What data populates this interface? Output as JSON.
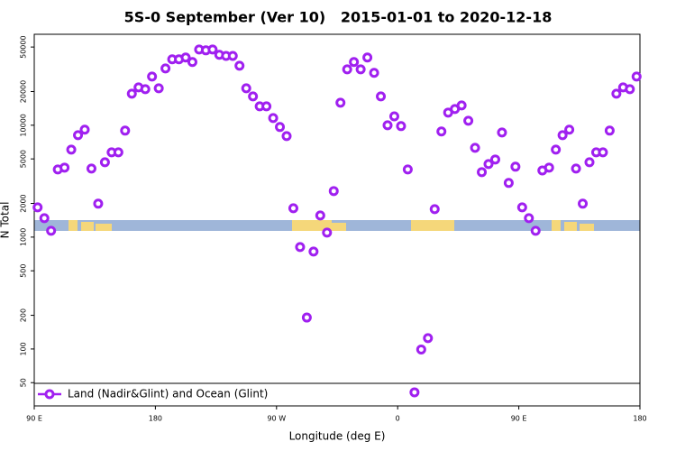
{
  "chart_data": {
    "type": "scatter",
    "title": "5S-0 September (Ver 10)   2015-01-01 to 2020-12-18",
    "x_label": "Longitude (deg E)",
    "y_label": "N Total",
    "yscale": "log",
    "xlim": [
      90,
      540
    ],
    "ylim": [
      31,
      65000
    ],
    "xticks": [
      {
        "value": 90,
        "label": "90 E"
      },
      180,
      {
        "value": 270,
        "label": "90 W"
      },
      {
        "value": 360,
        "label": "0"
      },
      {
        "value": 450,
        "label": "90 E"
      },
      {
        "value": 540,
        "label": "180"
      }
    ],
    "yticks": [
      50,
      100,
      200,
      500,
      1000,
      2000,
      5000,
      10000,
      20000,
      50000
    ],
    "legend": "lower left",
    "series": [
      {
        "name": "Land (Nadir&Glint) and Ocean (Glint)",
        "color": "#a020f0",
        "x": [
          92.5,
          97.5,
          102.5,
          107.5,
          112.5,
          117.5,
          122.5,
          127.5,
          132.5,
          137.5,
          142.5,
          147.5,
          152.5,
          157.5,
          162.5,
          167.5,
          172.5,
          177.5,
          182.5,
          187.5,
          192.5,
          197.5,
          202.5,
          207.5,
          212.5,
          217.5,
          222.5,
          227.5,
          232.5,
          237.5,
          242.5,
          247.5,
          252.5,
          257.5,
          262.5,
          267.5,
          272.5,
          277.5,
          282.5,
          287.5,
          292.5,
          297.5,
          302.5,
          307.5,
          312.5,
          317.5,
          322.5,
          327.5,
          332.5,
          337.5,
          342.5,
          347.5,
          352.5,
          357.5,
          362.5,
          367.5,
          372.5,
          377.5,
          382.5,
          387.5,
          392.5,
          397.5,
          402.5,
          407.5,
          412.5,
          417.5,
          422.5,
          427.5,
          432.5,
          437.5,
          442.5,
          447.5,
          452.5,
          457.5,
          462.5,
          467.5,
          472.5,
          477.5,
          482.5,
          487.5,
          492.5,
          497.5,
          502.5,
          507.5,
          512.5,
          517.5,
          522.5,
          527.5,
          532.5,
          537.5
        ],
        "values": [
          1845,
          1477,
          1138,
          4027,
          4180,
          6056,
          8150,
          9120,
          4100,
          1990,
          4670,
          5730,
          5730,
          8950,
          19140,
          21800,
          21000,
          27250,
          21400,
          32200,
          38800,
          38800,
          40300,
          36700,
          47500,
          46700,
          47500,
          42600,
          41600,
          41600,
          34000,
          21400,
          18100,
          14760,
          14760,
          11600,
          9640,
          8000,
          1812,
          815,
          191,
          743,
          1562,
          1097,
          2580,
          15900,
          31600,
          36700,
          31600,
          40300,
          29400,
          18100,
          10000,
          12000,
          9820,
          4027,
          41,
          99,
          125,
          1778,
          8790,
          12970,
          13960,
          15030,
          10970,
          6280,
          3810,
          4500,
          4940,
          8610,
          3050,
          4260,
          1845,
          1477,
          1138,
          3940,
          4180,
          6056,
          8150,
          9120,
          4100,
          1990,
          4670,
          5730,
          5730,
          8950,
          19140,
          21800,
          21000,
          27250
        ]
      }
    ]
  }
}
